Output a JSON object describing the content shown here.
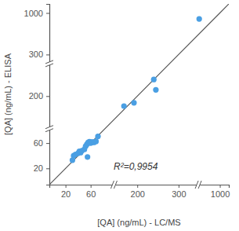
{
  "chart_data": {
    "type": "scatter",
    "x_label": "[QA] (ng/mL) - LC/MS",
    "y_label": "[QA] (ng/mL) - ELISA",
    "annotation": "R²=0,9954",
    "x": [
      31,
      33,
      36,
      40,
      42,
      44,
      46,
      50,
      52,
      54,
      56,
      55,
      58,
      60,
      63,
      66,
      70,
      76,
      82,
      160,
      190,
      240,
      245,
      650
    ],
    "values": [
      33,
      40,
      42,
      44,
      47,
      45,
      48,
      50,
      55,
      58,
      62,
      38,
      64,
      60,
      63,
      63,
      62,
      65,
      80,
      170,
      180,
      240,
      215,
      900
    ],
    "color": "#4a9fe3",
    "xlim": [
      0,
      1050
    ],
    "ylim": [
      0,
      1050
    ],
    "xticks": [
      20,
      60,
      200,
      300,
      1000
    ],
    "yticks": [
      20,
      60,
      200,
      300,
      1000
    ],
    "grid": false
  }
}
